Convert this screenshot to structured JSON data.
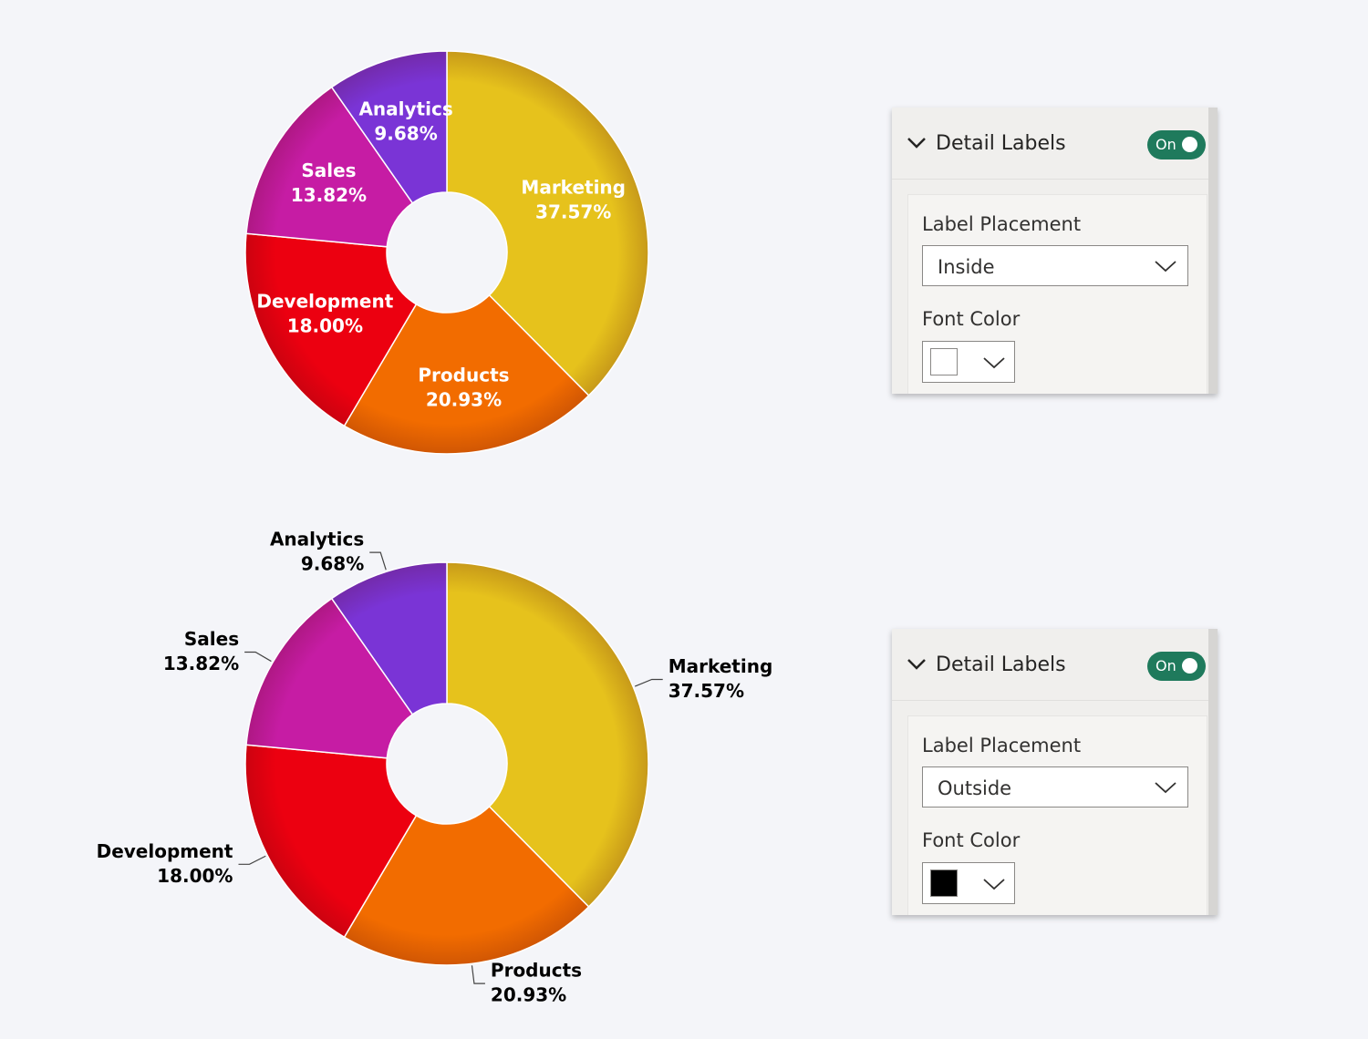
{
  "chart_data": [
    {
      "type": "pie",
      "categories": [
        "Marketing",
        "Products",
        "Development",
        "Sales",
        "Analytics"
      ],
      "values": [
        37.57,
        20.93,
        18.0,
        13.82,
        9.68
      ],
      "value_labels": [
        "37.57%",
        "20.93%",
        "18.00%",
        "13.82%",
        "9.68%"
      ],
      "colors": [
        "#e6c21c",
        "#f26c00",
        "#ec0010",
        "#c61ca4",
        "#7a34d6"
      ]
    },
    {
      "type": "pie",
      "categories": [
        "Marketing",
        "Products",
        "Development",
        "Sales",
        "Analytics"
      ],
      "values": [
        37.57,
        20.93,
        18.0,
        13.82,
        9.68
      ],
      "value_labels": [
        "37.57%",
        "20.93%",
        "18.00%",
        "13.82%",
        "9.68%"
      ],
      "colors": [
        "#e6c21c",
        "#f26c00",
        "#ec0010",
        "#c61ca4",
        "#7a34d6"
      ]
    }
  ],
  "panels": [
    {
      "title": "Detail Labels",
      "toggle": "On",
      "placement_label": "Label Placement",
      "placement": "Inside",
      "font_color_label": "Font Color",
      "font_color": "#ffffff"
    },
    {
      "title": "Detail Labels",
      "toggle": "On",
      "placement_label": "Label Placement",
      "placement": "Outside",
      "font_color_label": "Font Color",
      "font_color": "#000000"
    }
  ]
}
